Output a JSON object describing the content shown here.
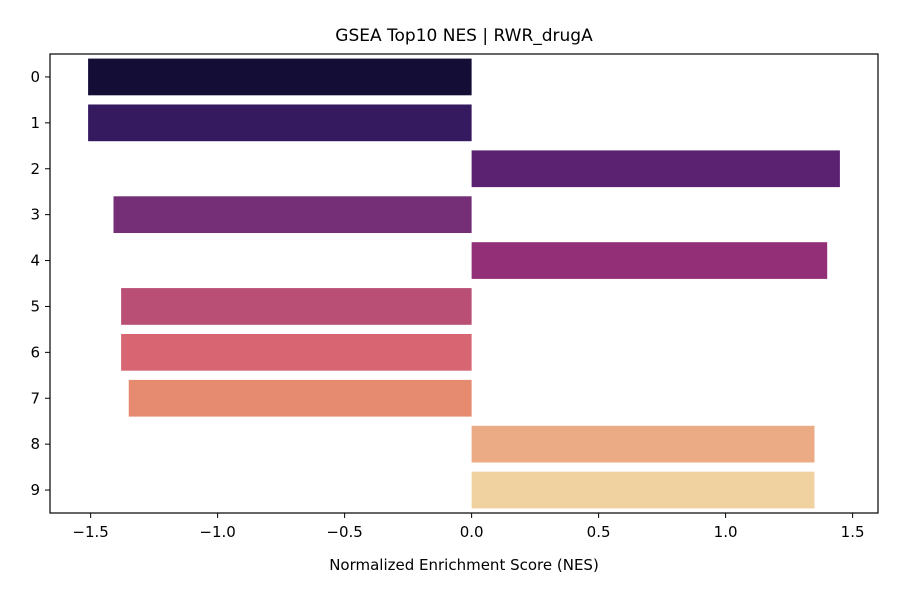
{
  "chart_data": {
    "type": "bar",
    "orientation": "horizontal",
    "title": "GSEA Top10 NES | RWR_drugA",
    "xlabel": "Normalized Enrichment Score (NES)",
    "ylabel": "",
    "categories": [
      "0",
      "1",
      "2",
      "3",
      "4",
      "5",
      "6",
      "7",
      "8",
      "9"
    ],
    "values": [
      -1.51,
      -1.51,
      1.45,
      -1.41,
      1.4,
      -1.38,
      -1.38,
      -1.35,
      1.35,
      1.35
    ],
    "bar_colors": [
      "#140e36",
      "#361a5f",
      "#5a2271",
      "#742f77",
      "#932f77",
      "#b94f74",
      "#d76672",
      "#e68b70",
      "#ebab84",
      "#f0d1a0"
    ],
    "xlim": [
      -1.66,
      1.6
    ],
    "xticks": [
      -1.5,
      -1.0,
      -0.5,
      0.0,
      0.5,
      1.0,
      1.5
    ],
    "xtick_labels": [
      "−1.5",
      "−1.0",
      "−0.5",
      "0.0",
      "0.5",
      "1.0",
      "1.5"
    ],
    "grid": false,
    "legend": "none"
  }
}
